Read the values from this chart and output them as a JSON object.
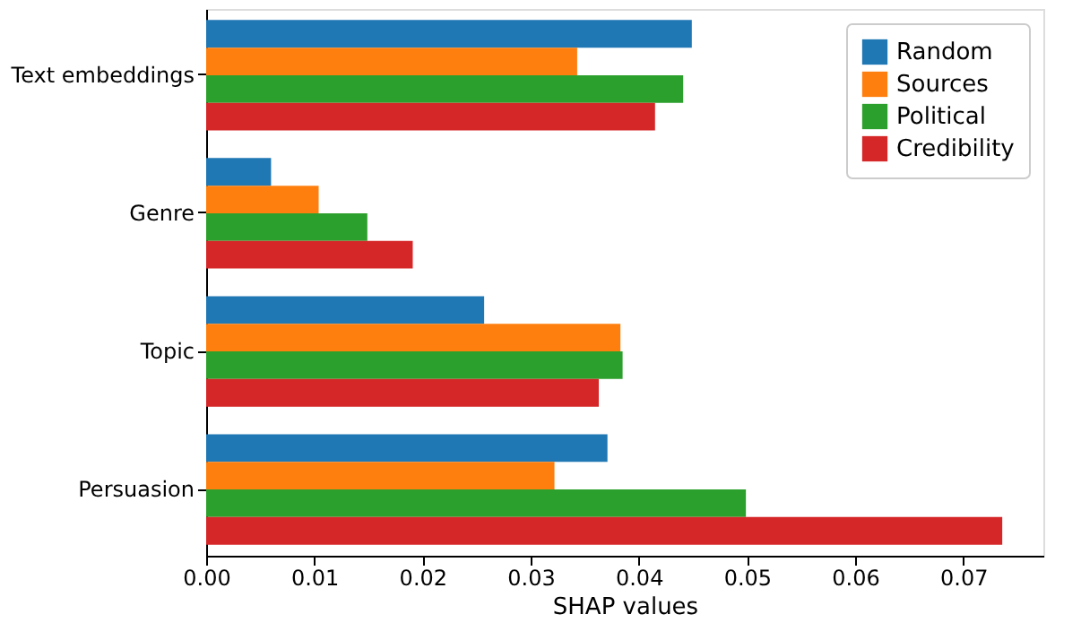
{
  "chart_data": {
    "type": "bar",
    "orientation": "horizontal",
    "xlabel": "SHAP values",
    "categories": [
      "Text embeddings",
      "Genre",
      "Topic",
      "Persuasion"
    ],
    "series": [
      {
        "name": "Random",
        "color": "#1f77b4",
        "values": [
          0.0449,
          0.006,
          0.0257,
          0.0371
        ]
      },
      {
        "name": "Sources",
        "color": "#ff7f0e",
        "values": [
          0.0343,
          0.0104,
          0.0383,
          0.0322
        ]
      },
      {
        "name": "Political",
        "color": "#2ca02c",
        "values": [
          0.0441,
          0.0149,
          0.0385,
          0.0499
        ]
      },
      {
        "name": "Credibility",
        "color": "#d62728",
        "values": [
          0.0415,
          0.0191,
          0.0363,
          0.0736
        ]
      }
    ],
    "xlim": [
      0,
      0.0774
    ],
    "xticks": [
      {
        "value": 0,
        "label": "0.00"
      },
      {
        "value": 0.01,
        "label": "0.01"
      },
      {
        "value": 0.02,
        "label": "0.02"
      },
      {
        "value": 0.03,
        "label": "0.03"
      },
      {
        "value": 0.04,
        "label": "0.04"
      },
      {
        "value": 0.05,
        "label": "0.05"
      },
      {
        "value": 0.06,
        "label": "0.06"
      },
      {
        "value": 0.07,
        "label": "0.07"
      }
    ],
    "grid": false,
    "legend": "top right"
  }
}
